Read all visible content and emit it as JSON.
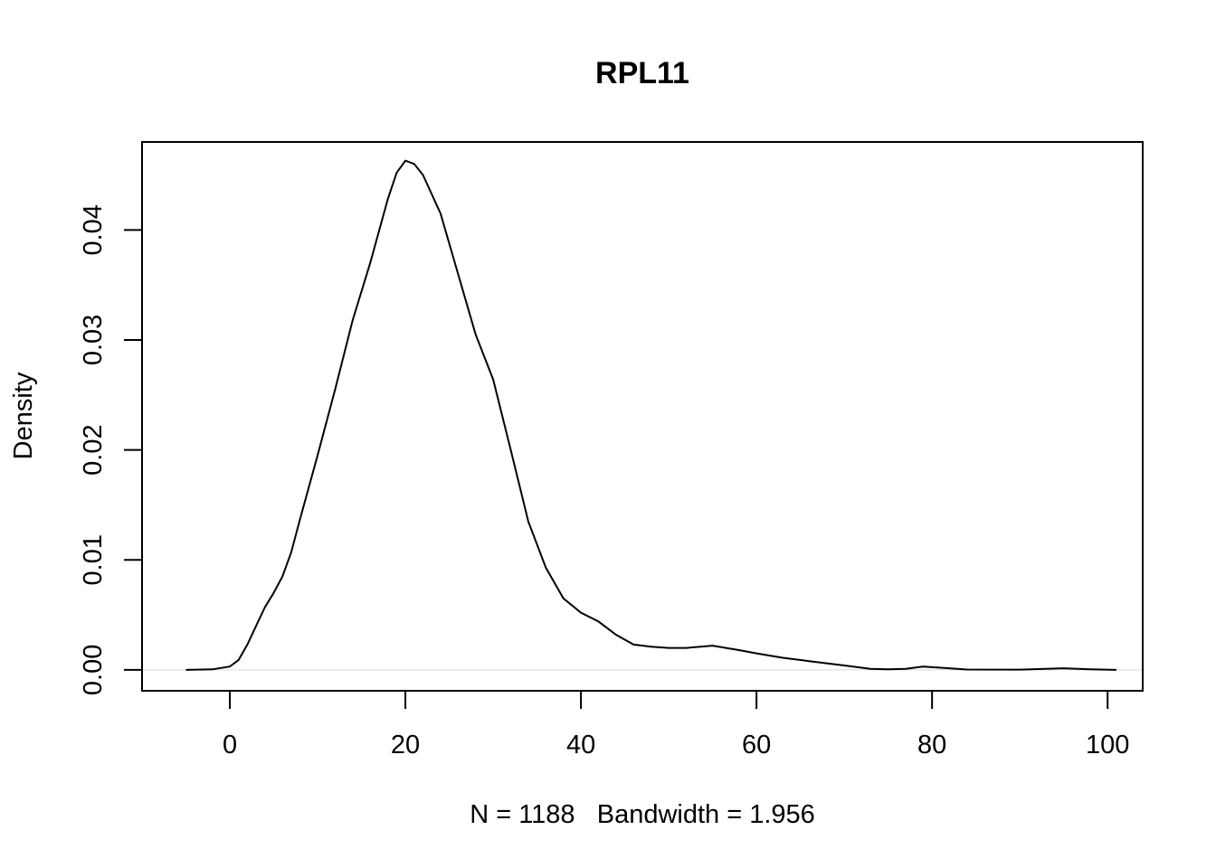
{
  "chart_data": {
    "type": "line",
    "title": "RPL11",
    "xlabel": "N = 1188   Bandwidth = 1.956",
    "ylabel": "Density",
    "xlim": [
      -10,
      104
    ],
    "ylim": [
      -0.0019,
      0.048
    ],
    "x_ticks": [
      0,
      20,
      40,
      60,
      80,
      100
    ],
    "x_tick_labels": [
      "0",
      "20",
      "40",
      "60",
      "80",
      "100"
    ],
    "y_ticks": [
      0,
      0.01,
      0.02,
      0.03,
      0.04
    ],
    "y_tick_labels": [
      "0.00",
      "0.01",
      "0.02",
      "0.03",
      "0.04"
    ],
    "grid": false,
    "zero_line_color": "#d9d9d9",
    "line_color": "#000000",
    "series": [
      {
        "name": "density",
        "x": [
          -5,
          -2,
          0,
          1,
          2,
          3,
          4,
          5,
          6,
          7,
          8,
          10,
          12,
          14,
          16,
          18,
          19,
          20,
          21,
          22,
          24,
          26,
          28,
          30,
          32,
          34,
          36,
          38,
          40,
          42,
          44,
          46,
          48,
          50,
          52,
          55,
          58,
          60,
          63,
          66,
          70,
          73,
          75,
          77,
          79,
          81,
          84,
          90,
          95,
          98,
          101
        ],
        "y": [
          0,
          5e-05,
          0.0003,
          0.0009,
          0.0023,
          0.004,
          0.0057,
          0.007,
          0.0085,
          0.0107,
          0.0137,
          0.0195,
          0.0255,
          0.0318,
          0.037,
          0.0428,
          0.0452,
          0.0463,
          0.046,
          0.045,
          0.0415,
          0.036,
          0.0305,
          0.0264,
          0.02,
          0.0135,
          0.0093,
          0.0065,
          0.0052,
          0.0044,
          0.0032,
          0.0023,
          0.0021,
          0.002,
          0.002,
          0.0022,
          0.0018,
          0.0015,
          0.0011,
          0.0008,
          0.0004,
          0.0001,
          5e-05,
          0.0001,
          0.0003,
          0.0002,
          3e-05,
          2e-05,
          0.00015,
          5e-05,
          0
        ]
      }
    ]
  }
}
